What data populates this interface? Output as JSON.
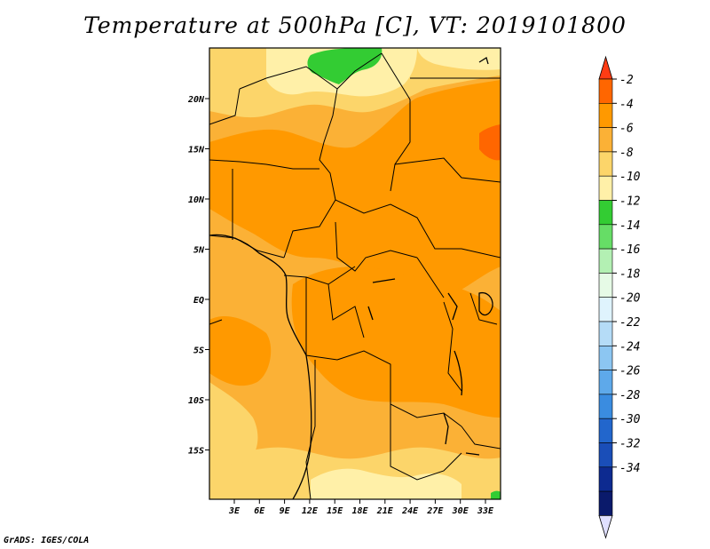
{
  "title": "Temperature at 500hPa [C], VT: 2019101800",
  "footer": "GrADS: IGES/COLA",
  "map": {
    "region": "Central Africa",
    "variable": "Temperature at 500hPa",
    "units": "C",
    "valid_time": "2019101800",
    "lon_labels": [
      "3E",
      "6E",
      "9E",
      "12E",
      "15E",
      "18E",
      "21E",
      "24E",
      "27E",
      "30E",
      "33E"
    ],
    "lat_labels": [
      "20N",
      "15N",
      "10N",
      "5N",
      "EQ",
      "5S",
      "10S",
      "15S"
    ],
    "colors": {
      "m2": "#ff6600",
      "m4": "#ff9900",
      "m6": "#fbb136",
      "m8": "#fcd56a",
      "m10": "#fff0a8",
      "m12": "#33cc33",
      "m14": "#66dd66"
    }
  },
  "colorbar": {
    "labels": [
      "-2",
      "-4",
      "-6",
      "-8",
      "-10",
      "-12",
      "-14",
      "-16",
      "-18",
      "-20",
      "-22",
      "-24",
      "-26",
      "-28",
      "-30",
      "-32",
      "-34"
    ],
    "colors": [
      "#ff6600",
      "#ff9900",
      "#fbb136",
      "#fcd56a",
      "#fff0a8",
      "#33cc33",
      "#66dd66",
      "#b3f0b3",
      "#e6fae6",
      "#dff3fd",
      "#b5dcf7",
      "#8cc6f2",
      "#5ea9ea",
      "#3a8ce0",
      "#2266cc",
      "#1a4eb8",
      "#0d2a90",
      "#0a1a6b"
    ],
    "over_color": "#ff3c14",
    "under_color": "#e0e0ff"
  }
}
